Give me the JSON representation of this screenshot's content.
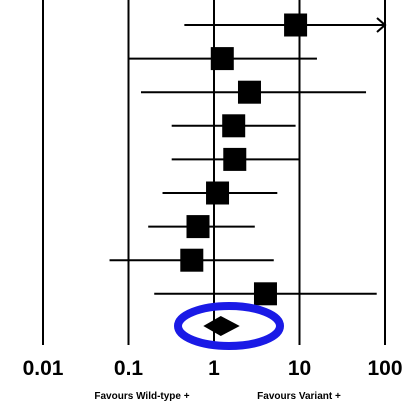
{
  "chart_data": {
    "type": "forest",
    "x_scale": "log",
    "xlim": [
      0.01,
      100
    ],
    "x_ticks": [
      {
        "value": 0.01,
        "label": "0.01"
      },
      {
        "value": 0.1,
        "label": "0.1"
      },
      {
        "value": 1,
        "label": "1"
      },
      {
        "value": 10,
        "label": "10"
      },
      {
        "value": 100,
        "label": "100"
      }
    ],
    "grid": "vertical lines at ticks",
    "studies": [
      {
        "estimate": 9.0,
        "ci_lower": 0.45,
        "ci_upper": 100,
        "ci_upper_arrow": true
      },
      {
        "estimate": 1.25,
        "ci_lower": 0.1,
        "ci_upper": 16
      },
      {
        "estimate": 2.6,
        "ci_lower": 0.14,
        "ci_upper": 60
      },
      {
        "estimate": 1.7,
        "ci_lower": 0.32,
        "ci_upper": 9
      },
      {
        "estimate": 1.75,
        "ci_lower": 0.32,
        "ci_upper": 10
      },
      {
        "estimate": 1.1,
        "ci_lower": 0.25,
        "ci_upper": 5.5
      },
      {
        "estimate": 0.65,
        "ci_lower": 0.17,
        "ci_upper": 3
      },
      {
        "estimate": 0.55,
        "ci_lower": 0.06,
        "ci_upper": 5
      },
      {
        "estimate": 4.0,
        "ci_lower": 0.2,
        "ci_upper": 80
      }
    ],
    "pooled": {
      "estimate": 1.2,
      "ci_lower": 0.75,
      "ci_upper": 2.0,
      "highlighted": true
    },
    "favour_labels": {
      "left": "Favours Wild-type +",
      "right": "Favours Variant +"
    },
    "colors": {
      "marks": "#000000",
      "highlight": "#1a1ae6"
    }
  }
}
